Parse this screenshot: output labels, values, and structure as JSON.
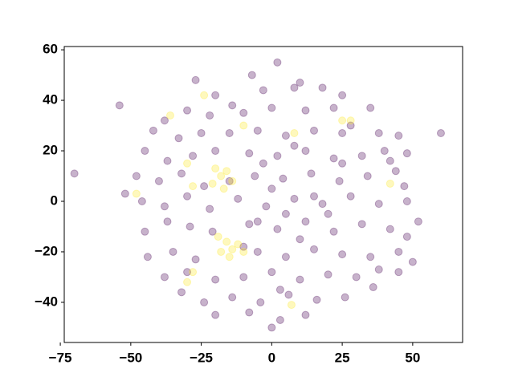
{
  "chart_data": {
    "type": "scatter",
    "xlim": [
      -73.6,
      67.7
    ],
    "ylim": [
      -55.9,
      61.3
    ],
    "xticks": [
      {
        "value": -75,
        "label": "−75"
      },
      {
        "value": -50,
        "label": "−50"
      },
      {
        "value": -25,
        "label": "−25"
      },
      0,
      25,
      50
    ],
    "yticks": [
      {
        "value": -40,
        "label": "−40"
      },
      {
        "value": -20,
        "label": "−20"
      },
      0,
      20,
      40,
      60
    ],
    "opacity": 0.3,
    "series": [
      {
        "color": "#440154",
        "x": [
          -27,
          -7,
          2,
          10,
          -20,
          -3,
          8,
          18,
          -14,
          25,
          -38,
          -30,
          -22,
          -10,
          0,
          12,
          22,
          35,
          28,
          -42,
          -33,
          -25,
          -15,
          -5,
          5,
          15,
          25,
          38,
          45,
          40,
          -45,
          -37,
          -28,
          -20,
          -8,
          2,
          12,
          22,
          32,
          42,
          48,
          -48,
          -40,
          -32,
          -24,
          -6,
          4,
          14,
          24,
          34,
          44,
          47,
          -46,
          -38,
          -30,
          -22,
          -12,
          -2,
          8,
          18,
          28,
          38,
          48,
          52,
          -45,
          -37,
          -29,
          -21,
          -8,
          2,
          12,
          22,
          32,
          42,
          48,
          -44,
          -35,
          -27,
          -5,
          5,
          15,
          25,
          35,
          45,
          50,
          -38,
          -30,
          -20,
          -10,
          0,
          10,
          20,
          30,
          38,
          45,
          -32,
          -24,
          -14,
          -4,
          6,
          16,
          26,
          36,
          -20,
          -8,
          3,
          12,
          0,
          0,
          5,
          -5,
          10,
          -3,
          8,
          15,
          -10,
          20,
          25,
          -15,
          3,
          -70,
          -54,
          60,
          -52
        ],
        "values": [
          48,
          50,
          55,
          47,
          42,
          44,
          45,
          45,
          38,
          42,
          32,
          36,
          34,
          35,
          37,
          36,
          37,
          37,
          30,
          28,
          25,
          27,
          27,
          28,
          26,
          28,
          27,
          27,
          26,
          20,
          20,
          16,
          18,
          20,
          19,
          18,
          20,
          17,
          18,
          16,
          19,
          10,
          8,
          11,
          6,
          10,
          9,
          11,
          8,
          10,
          12,
          6,
          0,
          -2,
          2,
          -3,
          1,
          -2,
          1,
          -1,
          2,
          -1,
          0,
          -8,
          -12,
          -8,
          -10,
          -12,
          -9,
          -11,
          -8,
          -12,
          -9,
          -11,
          -14,
          -22,
          -20,
          -23,
          -20,
          -22,
          -19,
          -21,
          -22,
          -20,
          -24,
          -30,
          -28,
          -31,
          -30,
          -28,
          -31,
          -29,
          -30,
          -27,
          -28,
          -36,
          -40,
          -38,
          -40,
          -37,
          -39,
          -38,
          -34,
          -45,
          -44,
          -47,
          -45,
          -50,
          5,
          -5,
          -8,
          -15,
          15,
          22,
          2,
          -18,
          -5,
          15,
          8,
          -35,
          11,
          38,
          27,
          3
        ]
      },
      {
        "color": "#fde725",
        "x": [
          -20,
          -18,
          -16,
          -21,
          -14,
          -17,
          -16,
          -14,
          -18,
          -12,
          -15,
          -19,
          -10,
          -30,
          -28,
          -24,
          42,
          25,
          28,
          -36,
          -48,
          -10,
          8,
          7,
          -30,
          -28
        ],
        "values": [
          13,
          10,
          12,
          7,
          8,
          5,
          -16,
          -19,
          -20,
          -17,
          -22,
          -14,
          -20,
          -32,
          -28,
          42,
          7,
          32,
          32,
          34,
          3,
          30,
          27,
          -41,
          15,
          6
        ]
      }
    ]
  }
}
